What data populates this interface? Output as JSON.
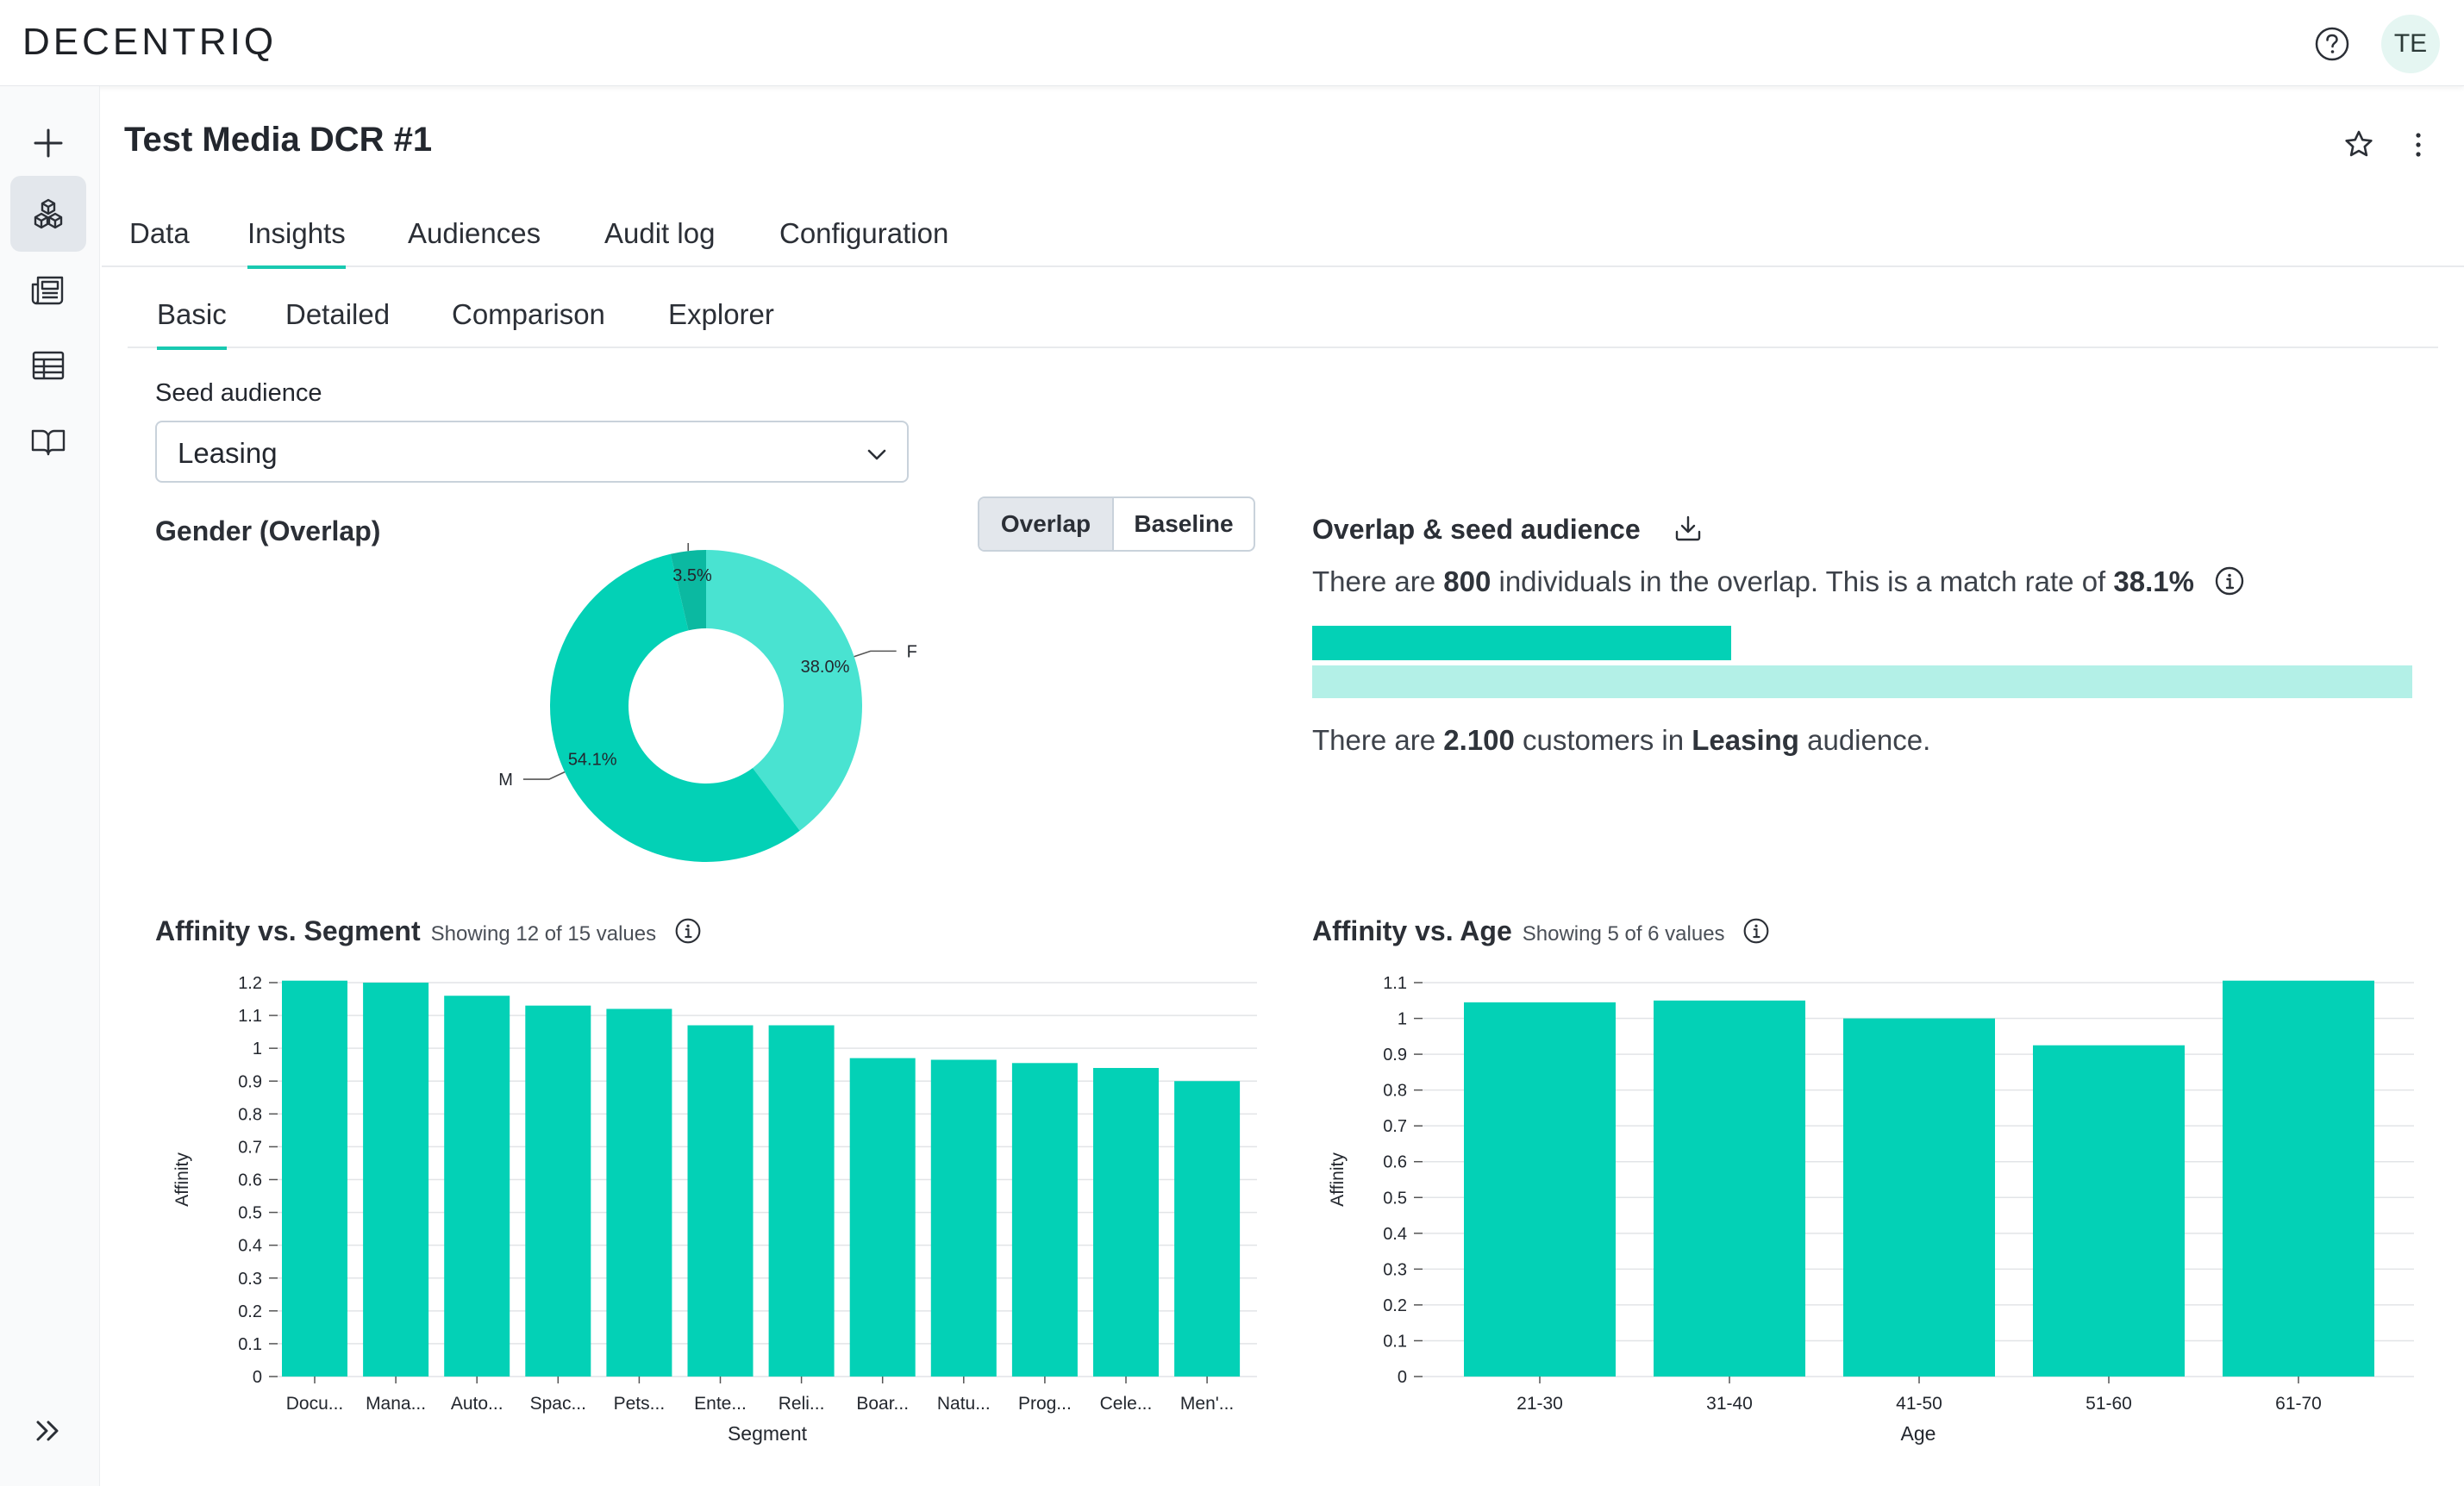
{
  "app": {
    "logo": "DECENTRIQ",
    "user_initials": "TE"
  },
  "page": {
    "title": "Test Media DCR #1"
  },
  "tabs": [
    {
      "label": "Data"
    },
    {
      "label": "Insights",
      "active": true
    },
    {
      "label": "Audiences"
    },
    {
      "label": "Audit log"
    },
    {
      "label": "Configuration"
    }
  ],
  "subtabs": [
    {
      "label": "Basic",
      "active": true
    },
    {
      "label": "Detailed"
    },
    {
      "label": "Comparison"
    },
    {
      "label": "Explorer"
    }
  ],
  "seed": {
    "label": "Seed audience",
    "value": "Leasing"
  },
  "gender": {
    "title": "Gender (Overlap)",
    "toggle": {
      "overlap": "Overlap",
      "baseline": "Baseline",
      "active": "Overlap"
    }
  },
  "overlap": {
    "title": "Overlap & seed audience",
    "line1_pre": "There are ",
    "line1_count": "800",
    "line1_mid": " individuals in the overlap. This is a match rate of ",
    "line1_rate": "38.1%",
    "line2_pre": "There are ",
    "line2_count": "2.100",
    "line2_mid": " customers in ",
    "line2_audience": "Leasing",
    "line2_post": " audience.",
    "match_fraction": 0.381,
    "colors": {
      "overlap": "#03d1b6",
      "seed": "#b3f0e7"
    }
  },
  "segment_header": {
    "title": "Affinity vs. Segment",
    "subtitle": "Showing 12 of 15 values"
  },
  "age_header": {
    "title": "Affinity vs. Age",
    "subtitle": "Showing 5 of 6 values"
  },
  "chart_data": [
    {
      "type": "pie",
      "title": "Gender (Overlap)",
      "categories": [
        "F",
        "M",
        "N/A"
      ],
      "values": [
        38.0,
        54.1,
        3.5
      ],
      "labels": [
        "38.0%",
        "54.1%",
        "3.5%"
      ],
      "colors": [
        "#49e3d1",
        "#03d1b6",
        "#0bb9a1"
      ],
      "donut": true
    },
    {
      "type": "bar",
      "title": "Affinity vs. Segment",
      "xlabel": "Segment",
      "ylabel": "Affinity",
      "categories": [
        "Docu...",
        "Mana...",
        "Auto...",
        "Spac...",
        "Pets...",
        "Ente...",
        "Reli...",
        "Boar...",
        "Natu...",
        "Prog...",
        "Cele...",
        "Men'..."
      ],
      "values": [
        1.21,
        1.2,
        1.16,
        1.13,
        1.12,
        1.07,
        1.07,
        0.97,
        0.965,
        0.955,
        0.94,
        0.9
      ],
      "ylim": [
        0,
        1.2
      ],
      "yticks": [
        "0",
        "0.1",
        "0.2",
        "0.3",
        "0.4",
        "0.5",
        "0.6",
        "0.7",
        "0.8",
        "0.9",
        "1",
        "1.1",
        "1.2"
      ],
      "grid": true,
      "color": "#03d1b6"
    },
    {
      "type": "bar",
      "title": "Affinity vs. Age",
      "xlabel": "Age",
      "ylabel": "Affinity",
      "categories": [
        "21-30",
        "31-40",
        "41-50",
        "51-60",
        "61-70"
      ],
      "values": [
        1.045,
        1.05,
        1.0,
        0.925,
        1.11
      ],
      "ylim": [
        0,
        1.1
      ],
      "yticks": [
        "0",
        "0.1",
        "0.2",
        "0.3",
        "0.4",
        "0.5",
        "0.6",
        "0.7",
        "0.8",
        "0.9",
        "1",
        "1.1"
      ],
      "grid": true,
      "color": "#03d1b6"
    }
  ]
}
